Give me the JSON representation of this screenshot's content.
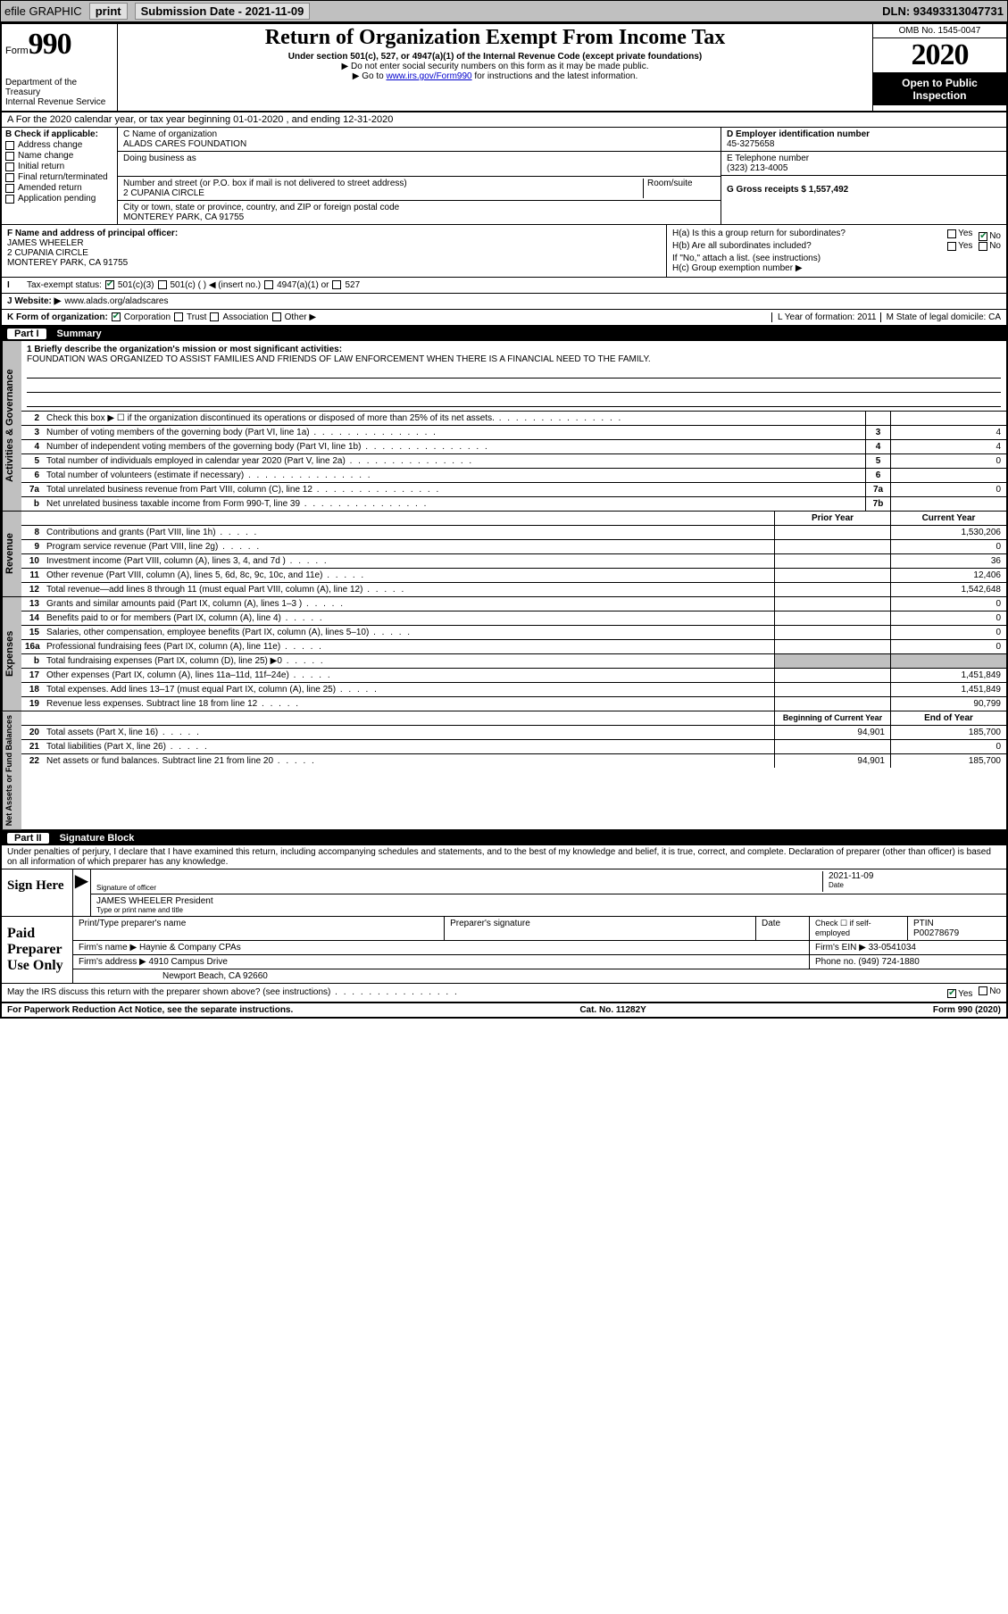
{
  "topbar": {
    "efile": "efile GRAPHIC",
    "print": "print",
    "submission_label": "Submission Date - 2021-11-09",
    "dln": "DLN: 93493313047731"
  },
  "header": {
    "form_word": "Form",
    "form_num": "990",
    "dept1": "Department of the Treasury",
    "dept2": "Internal Revenue Service",
    "title": "Return of Organization Exempt From Income Tax",
    "sub": "Under section 501(c), 527, or 4947(a)(1) of the Internal Revenue Code (except private foundations)",
    "note1": "▶ Do not enter social security numbers on this form as it may be made public.",
    "note2_pre": "▶ Go to ",
    "note2_link": "www.irs.gov/Form990",
    "note2_post": " for instructions and the latest information.",
    "omb": "OMB No. 1545-0047",
    "year": "2020",
    "open": "Open to Public Inspection"
  },
  "rowA": "A  For the 2020 calendar year, or tax year beginning 01-01-2020    , and ending 12-31-2020",
  "B": {
    "title": "B Check if applicable:",
    "opts": [
      "Address change",
      "Name change",
      "Initial return",
      "Final return/terminated",
      "Amended return",
      "Application pending"
    ]
  },
  "C": {
    "name_lbl": "C Name of organization",
    "name_val": "ALADS CARES FOUNDATION",
    "dba_lbl": "Doing business as",
    "addr_lbl": "Number and street (or P.O. box if mail is not delivered to street address)",
    "room_lbl": "Room/suite",
    "addr_val": "2 CUPANIA CIRCLE",
    "city_lbl": "City or town, state or province, country, and ZIP or foreign postal code",
    "city_val": "MONTEREY PARK, CA  91755"
  },
  "D": {
    "lbl": "D Employer identification number",
    "val": "45-3275658"
  },
  "E": {
    "lbl": "E Telephone number",
    "val": "(323) 213-4005"
  },
  "G": {
    "lbl": "G Gross receipts $ 1,557,492"
  },
  "F": {
    "lbl": "F  Name and address of principal officer:",
    "name": "JAMES WHEELER",
    "addr1": "2 CUPANIA CIRCLE",
    "addr2": "MONTEREY PARK, CA  91755"
  },
  "H": {
    "a": "H(a)  Is this a group return for subordinates?",
    "b": "H(b)  Are all subordinates included?",
    "b_note": "If \"No,\" attach a list. (see instructions)",
    "c": "H(c)  Group exemption number ▶",
    "yes": "Yes",
    "no": "No"
  },
  "I": {
    "lbl": "Tax-exempt status:",
    "o1": "501(c)(3)",
    "o2": "501(c) (   ) ◀ (insert no.)",
    "o3": "4947(a)(1) or",
    "o4": "527"
  },
  "J": {
    "lbl": "J   Website: ▶",
    "val": "www.alads.org/aladscares"
  },
  "K": {
    "lbl": "K Form of organization:",
    "o1": "Corporation",
    "o2": "Trust",
    "o3": "Association",
    "o4": "Other ▶",
    "L": "L Year of formation: 2011",
    "M": "M State of legal domicile: CA"
  },
  "part1": {
    "lbl": "Part I",
    "title": "Summary"
  },
  "briefly": {
    "q": "1  Briefly describe the organization's mission or most significant activities:",
    "a": "FOUNDATION WAS ORGANIZED TO ASSIST FAMILIES AND FRIENDS OF LAW ENFORCEMENT WHEN THERE IS A FINANCIAL NEED TO THE FAMILY."
  },
  "gov_rows": [
    {
      "n": "2",
      "t": "Check this box ▶ ☐  if the organization discontinued its operations or disposed of more than 25% of its net assets.",
      "box": "",
      "v": ""
    },
    {
      "n": "3",
      "t": "Number of voting members of the governing body (Part VI, line 1a)",
      "box": "3",
      "v": "4"
    },
    {
      "n": "4",
      "t": "Number of independent voting members of the governing body (Part VI, line 1b)",
      "box": "4",
      "v": "4"
    },
    {
      "n": "5",
      "t": "Total number of individuals employed in calendar year 2020 (Part V, line 2a)",
      "box": "5",
      "v": "0"
    },
    {
      "n": "6",
      "t": "Total number of volunteers (estimate if necessary)",
      "box": "6",
      "v": ""
    },
    {
      "n": "7a",
      "t": "Total unrelated business revenue from Part VIII, column (C), line 12",
      "box": "7a",
      "v": "0"
    },
    {
      "n": "b",
      "t": "Net unrelated business taxable income from Form 990-T, line 39",
      "box": "7b",
      "v": ""
    }
  ],
  "col_hdrs": {
    "prior": "Prior Year",
    "current": "Current Year"
  },
  "rev_rows": [
    {
      "n": "8",
      "t": "Contributions and grants (Part VIII, line 1h)",
      "p": "",
      "c": "1,530,206"
    },
    {
      "n": "9",
      "t": "Program service revenue (Part VIII, line 2g)",
      "p": "",
      "c": "0"
    },
    {
      "n": "10",
      "t": "Investment income (Part VIII, column (A), lines 3, 4, and 7d )",
      "p": "",
      "c": "36"
    },
    {
      "n": "11",
      "t": "Other revenue (Part VIII, column (A), lines 5, 6d, 8c, 9c, 10c, and 11e)",
      "p": "",
      "c": "12,406"
    },
    {
      "n": "12",
      "t": "Total revenue—add lines 8 through 11 (must equal Part VIII, column (A), line 12)",
      "p": "",
      "c": "1,542,648"
    }
  ],
  "exp_rows": [
    {
      "n": "13",
      "t": "Grants and similar amounts paid (Part IX, column (A), lines 1–3 )",
      "p": "",
      "c": "0"
    },
    {
      "n": "14",
      "t": "Benefits paid to or for members (Part IX, column (A), line 4)",
      "p": "",
      "c": "0"
    },
    {
      "n": "15",
      "t": "Salaries, other compensation, employee benefits (Part IX, column (A), lines 5–10)",
      "p": "",
      "c": "0"
    },
    {
      "n": "16a",
      "t": "Professional fundraising fees (Part IX, column (A), line 11e)",
      "p": "",
      "c": "0"
    },
    {
      "n": "b",
      "t": "Total fundraising expenses (Part IX, column (D), line 25) ▶0",
      "p": "shade",
      "c": "shade"
    },
    {
      "n": "17",
      "t": "Other expenses (Part IX, column (A), lines 11a–11d, 11f–24e)",
      "p": "",
      "c": "1,451,849"
    },
    {
      "n": "18",
      "t": "Total expenses. Add lines 13–17 (must equal Part IX, column (A), line 25)",
      "p": "",
      "c": "1,451,849"
    },
    {
      "n": "19",
      "t": "Revenue less expenses. Subtract line 18 from line 12",
      "p": "",
      "c": "90,799"
    }
  ],
  "net_hdrs": {
    "beg": "Beginning of Current Year",
    "end": "End of Year"
  },
  "net_rows": [
    {
      "n": "20",
      "t": "Total assets (Part X, line 16)",
      "p": "94,901",
      "c": "185,700"
    },
    {
      "n": "21",
      "t": "Total liabilities (Part X, line 26)",
      "p": "",
      "c": "0"
    },
    {
      "n": "22",
      "t": "Net assets or fund balances. Subtract line 21 from line 20",
      "p": "94,901",
      "c": "185,700"
    }
  ],
  "part2": {
    "lbl": "Part II",
    "title": "Signature Block"
  },
  "perjury": "Under penalties of perjury, I declare that I have examined this return, including accompanying schedules and statements, and to the best of my knowledge and belief, it is true, correct, and complete. Declaration of preparer (other than officer) is based on all information of which preparer has any knowledge.",
  "sign": {
    "here": "Sign Here",
    "sig_lbl": "Signature of officer",
    "date_lbl": "Date",
    "date_val": "2021-11-09",
    "name_val": "JAMES WHEELER  President",
    "name_lbl": "Type or print name and title"
  },
  "prep": {
    "title": "Paid Preparer Use Only",
    "c1": "Print/Type preparer's name",
    "c2": "Preparer's signature",
    "c3": "Date",
    "c4a": "Check ☐ if self-employed",
    "c5_lbl": "PTIN",
    "c5_val": "P00278679",
    "firm_lbl": "Firm's name   ▶",
    "firm_val": "Haynie & Company CPAs",
    "ein_lbl": "Firm's EIN ▶",
    "ein_val": "33-0541034",
    "addr_lbl": "Firm's address ▶",
    "addr_val1": "4910 Campus Drive",
    "addr_val2": "Newport Beach, CA  92660",
    "phone_lbl": "Phone no.",
    "phone_val": "(949) 724-1880"
  },
  "discuss": {
    "q": "May the IRS discuss this return with the preparer shown above? (see instructions)",
    "yes": "Yes",
    "no": "No"
  },
  "footer": {
    "left": "For Paperwork Reduction Act Notice, see the separate instructions.",
    "mid": "Cat. No. 11282Y",
    "right": "Form 990 (2020)"
  },
  "vtabs": {
    "gov": "Activities & Governance",
    "rev": "Revenue",
    "exp": "Expenses",
    "net": "Net Assets or Fund Balances"
  }
}
